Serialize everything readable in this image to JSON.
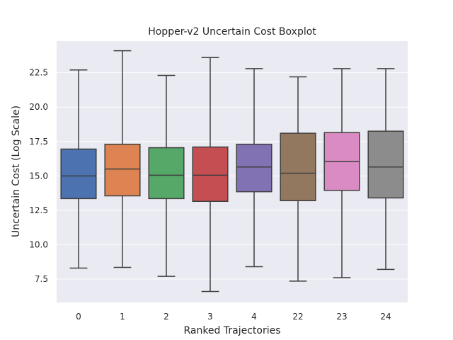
{
  "chart_data": {
    "type": "boxplot",
    "title": "Hopper-v2 Uncertain Cost Boxplot",
    "xlabel": "Ranked Trajectories",
    "ylabel": "Uncertain Cost (Log Scale)",
    "ylim": [
      5.8,
      24.8
    ],
    "yticks": [
      7.5,
      10.0,
      12.5,
      15.0,
      17.5,
      20.0,
      22.5
    ],
    "ytick_labels": [
      "7.5",
      "10.0",
      "12.5",
      "15.0",
      "17.5",
      "20.0",
      "22.5"
    ],
    "grid": true,
    "categories": [
      "0",
      "1",
      "2",
      "3",
      "4",
      "22",
      "23",
      "24"
    ],
    "boxes": [
      {
        "label": "0",
        "whisker_low": 8.3,
        "q1": 13.35,
        "median": 15.0,
        "q3": 16.95,
        "whisker_high": 22.7,
        "color": "#4c72b0"
      },
      {
        "label": "1",
        "whisker_low": 8.35,
        "q1": 13.55,
        "median": 15.5,
        "q3": 17.3,
        "whisker_high": 24.1,
        "color": "#dd8452"
      },
      {
        "label": "2",
        "whisker_low": 7.7,
        "q1": 13.35,
        "median": 15.05,
        "q3": 17.05,
        "whisker_high": 22.3,
        "color": "#55a868"
      },
      {
        "label": "3",
        "whisker_low": 6.6,
        "q1": 13.15,
        "median": 15.05,
        "q3": 17.1,
        "whisker_high": 23.6,
        "color": "#c44e52"
      },
      {
        "label": "4",
        "whisker_low": 8.4,
        "q1": 13.85,
        "median": 15.65,
        "q3": 17.3,
        "whisker_high": 22.8,
        "color": "#8172b3"
      },
      {
        "label": "22",
        "whisker_low": 7.35,
        "q1": 13.2,
        "median": 15.2,
        "q3": 18.1,
        "whisker_high": 22.2,
        "color": "#937860"
      },
      {
        "label": "23",
        "whisker_low": 7.6,
        "q1": 13.95,
        "median": 16.05,
        "q3": 18.15,
        "whisker_high": 22.8,
        "color": "#da8bc3"
      },
      {
        "label": "24",
        "whisker_low": 8.2,
        "q1": 13.4,
        "median": 15.65,
        "q3": 18.25,
        "whisker_high": 22.8,
        "color": "#8c8c8c"
      }
    ],
    "colors": {
      "plot_background": "#eaeaf2",
      "grid": "#ffffff",
      "line": "#3f3f3f"
    }
  }
}
